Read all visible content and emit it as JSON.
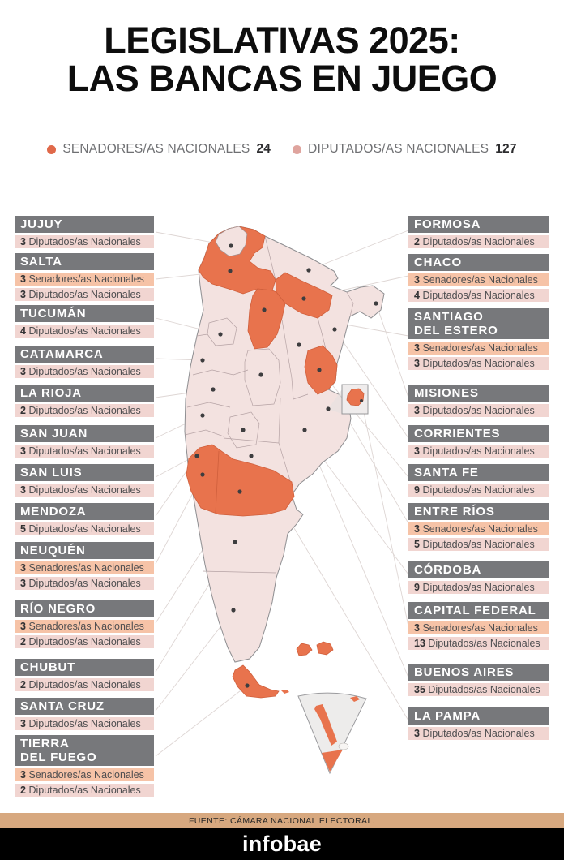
{
  "title": {
    "line1": "LEGISLATIVAS 2025:",
    "line2": "LAS BANCAS EN JUEGO"
  },
  "legend": {
    "senators": {
      "label": "SENADORES/AS NACIONALES",
      "value": "24"
    },
    "deputies": {
      "label": "DIPUTADOS/AS NACIONALES",
      "value": "127"
    }
  },
  "seat_labels": {
    "senators": "Senadores/as Nacionales",
    "deputies": "Diputados/as Nacionales"
  },
  "columns": {
    "left": [
      {
        "name_lines": [
          "JUJUY"
        ],
        "seats": [
          {
            "count": "3",
            "type": "deputies",
            "label": "Diputados/as Nacionales"
          }
        ]
      },
      {
        "name_lines": [
          "SALTA"
        ],
        "seats": [
          {
            "count": "3",
            "type": "senators",
            "label": "Senadores/as Nacionales"
          },
          {
            "count": "3",
            "type": "deputies",
            "label": "Diputados/as Nacionales"
          }
        ]
      },
      {
        "name_lines": [
          "TUCUMÁN"
        ],
        "seats": [
          {
            "count": "4",
            "type": "deputies",
            "label": "Diputados/as Nacionales"
          }
        ]
      },
      {
        "name_lines": [
          "CATAMARCA"
        ],
        "seats": [
          {
            "count": "3",
            "type": "deputies",
            "label": "Diputados/as Nacionales"
          }
        ]
      },
      {
        "name_lines": [
          "LA RIOJA"
        ],
        "seats": [
          {
            "count": "2",
            "type": "deputies",
            "label": "Diputados/as Nacionales"
          }
        ]
      },
      {
        "name_lines": [
          "SAN JUAN"
        ],
        "seats": [
          {
            "count": "3",
            "type": "deputies",
            "label": "Diputados/as Nacionales"
          }
        ]
      },
      {
        "name_lines": [
          "SAN LUIS"
        ],
        "seats": [
          {
            "count": "3",
            "type": "deputies",
            "label": "Diputados/as Nacionales"
          }
        ]
      },
      {
        "name_lines": [
          "MENDOZA"
        ],
        "seats": [
          {
            "count": "5",
            "type": "deputies",
            "label": "Diputados/as Nacionales"
          }
        ]
      },
      {
        "name_lines": [
          "NEUQUÉN"
        ],
        "seats": [
          {
            "count": "3",
            "type": "senators",
            "label": "Senadores/as Nacionales"
          },
          {
            "count": "3",
            "type": "deputies",
            "label": "Diputados/as Nacionales"
          }
        ]
      },
      {
        "name_lines": [
          "RÍO NEGRO"
        ],
        "seats": [
          {
            "count": "3",
            "type": "senators",
            "label": "Senadores/as Nacionales"
          },
          {
            "count": "2",
            "type": "deputies",
            "label": "Diputados/as Nacionales"
          }
        ]
      },
      {
        "name_lines": [
          "CHUBUT"
        ],
        "seats": [
          {
            "count": "2",
            "type": "deputies",
            "label": "Diputados/as Nacionales"
          }
        ]
      },
      {
        "name_lines": [
          "SANTA CRUZ"
        ],
        "seats": [
          {
            "count": "3",
            "type": "deputies",
            "label": "Diputados/as Nacionales"
          }
        ]
      },
      {
        "name_lines": [
          "TIERRA",
          "DEL FUEGO"
        ],
        "seats": [
          {
            "count": "3",
            "type": "senators",
            "label": "Senadores/as Nacionales"
          },
          {
            "count": "2",
            "type": "deputies",
            "label": "Diputados/as Nacionales"
          }
        ]
      }
    ],
    "right": [
      {
        "name_lines": [
          "FORMOSA"
        ],
        "seats": [
          {
            "count": "2",
            "type": "deputies",
            "label": "Diputados/as Nacionales"
          }
        ]
      },
      {
        "name_lines": [
          "CHACO"
        ],
        "seats": [
          {
            "count": "3",
            "type": "senators",
            "label": "Senadores/as Nacionales"
          },
          {
            "count": "4",
            "type": "deputies",
            "label": "Diputados/as Nacionales"
          }
        ]
      },
      {
        "name_lines": [
          "SANTIAGO",
          "DEL ESTERO"
        ],
        "seats": [
          {
            "count": "3",
            "type": "senators",
            "label": "Senadores/as Nacionales"
          },
          {
            "count": "3",
            "type": "deputies",
            "label": "Diputados/as Nacionales"
          }
        ]
      },
      {
        "name_lines": [
          "MISIONES"
        ],
        "seats": [
          {
            "count": "3",
            "type": "deputies",
            "label": "Diputados/as Nacionales"
          }
        ]
      },
      {
        "name_lines": [
          "CORRIENTES"
        ],
        "seats": [
          {
            "count": "3",
            "type": "deputies",
            "label": "Diputados/as Nacionales"
          }
        ]
      },
      {
        "name_lines": [
          "SANTA FE"
        ],
        "seats": [
          {
            "count": "9",
            "type": "deputies",
            "label": "Diputados/as Nacionales"
          }
        ]
      },
      {
        "name_lines": [
          "ENTRE RÍOS"
        ],
        "seats": [
          {
            "count": "3",
            "type": "senators",
            "label": "Senadores/as Nacionales"
          },
          {
            "count": "5",
            "type": "deputies",
            "label": "Diputados/as Nacionales"
          }
        ]
      },
      {
        "name_lines": [
          "CÓRDOBA"
        ],
        "seats": [
          {
            "count": "9",
            "type": "deputies",
            "label": "Diputados/as Nacionales"
          }
        ]
      },
      {
        "name_lines": [
          "CAPITAL FEDERAL"
        ],
        "seats": [
          {
            "count": "3",
            "type": "senators",
            "label": "Senadores/as Nacionales"
          },
          {
            "count": "13",
            "type": "deputies",
            "label": "Diputados/as Nacionales"
          }
        ]
      },
      {
        "name_lines": [
          "BUENOS AIRES"
        ],
        "seats": [
          {
            "count": "35",
            "type": "deputies",
            "label": "Diputados/as Nacionales"
          }
        ]
      },
      {
        "name_lines": [
          "LA PAMPA"
        ],
        "seats": [
          {
            "count": "3",
            "type": "deputies",
            "label": "Diputados/as Nacionales"
          }
        ]
      }
    ]
  },
  "map": {
    "senator_provinces": [
      "Salta",
      "Chaco",
      "Santiago del Estero",
      "Entre Ríos",
      "Capital Federal",
      "Neuquén",
      "Río Negro",
      "Tierra del Fuego"
    ]
  },
  "footer": {
    "source": "FUENTE: CÁMARA NACIONAL ELECTORAL.",
    "brand": "infobae"
  },
  "colors": {
    "gray_bar": "#77787b",
    "senators_row": "#f6c3a7",
    "deputies_row": "#f1d5d1",
    "map_orange": "#e8734d",
    "map_pink": "#f3e2e0",
    "footer_tan": "#d7a87f",
    "senators_dot": "#e0694a",
    "deputies_dot": "#dfa49e"
  }
}
